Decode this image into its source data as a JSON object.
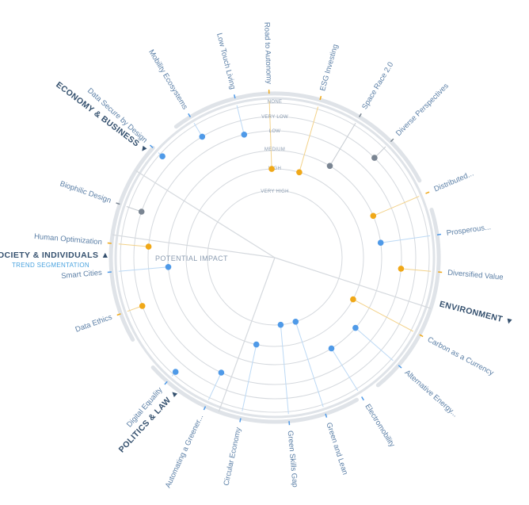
{
  "chart_data": {
    "type": "radar-scatter",
    "center_label": "POTENTIAL IMPACT",
    "rings": [
      "NONE",
      "VERY LOW",
      "LOW",
      "MEDIUM",
      "HIGH",
      "VERY HIGH"
    ],
    "colors": {
      "blue": "#4f9ae8",
      "orange": "#f0a818",
      "gray": "#7a8592",
      "grid": "#d5d9de",
      "frame": "#dfe3e8",
      "blue_line": "#bcd9f5",
      "orange_line": "#f3d28a",
      "gray_line": "#c6cbd1",
      "sector_text": "#34506e",
      "trend_text": "#5b7fa6",
      "sub_text": "#4aa3df"
    },
    "sectors": [
      {
        "name": "ECONOMY & BUSINESS",
        "sub": ""
      },
      {
        "name": "SOCIETY & INDIVIDUALS",
        "sub": "TREND SEGMENTATION"
      },
      {
        "name": "ENVIRONMENT",
        "sub": ""
      },
      {
        "name": "POLITICS & LAW",
        "sub": ""
      }
    ],
    "trends": [
      {
        "label": "Road to Autonomy",
        "angle": 92,
        "level": "HIGH",
        "color": "orange"
      },
      {
        "label": "ESG Investing",
        "angle": 74,
        "level": "HIGH",
        "color": "orange"
      },
      {
        "label": "Space Race 2.0",
        "angle": 59,
        "level": "MEDIUM",
        "color": "gray"
      },
      {
        "label": "Diverse Perspectives",
        "angle": 45,
        "level": "VERY LOW",
        "color": "gray"
      },
      {
        "label": "Distributed...",
        "angle": 23,
        "level": "MEDIUM",
        "color": "orange"
      },
      {
        "label": "Prosperous...",
        "angle": 8,
        "level": "MEDIUM",
        "color": "blue"
      },
      {
        "label": "Diversified Value",
        "angle": -5,
        "level": "LOW",
        "color": "orange"
      },
      {
        "label": "Carbon as a Currency",
        "angle": -28,
        "level": "HIGH",
        "color": "orange"
      },
      {
        "label": "Alternative Energy...",
        "angle": -41,
        "level": "MEDIUM",
        "color": "blue"
      },
      {
        "label": "Electromobility",
        "angle": -58,
        "level": "MEDIUM",
        "color": "blue"
      },
      {
        "label": "Green and Lean",
        "angle": -72,
        "level": "VERY HIGH",
        "color": "blue"
      },
      {
        "label": "Green Skills Gap",
        "angle": -85,
        "level": "VERY HIGH",
        "color": "blue"
      },
      {
        "label": "Circular Economy",
        "angle": -102,
        "level": "HIGH",
        "color": "blue"
      },
      {
        "label": "Automating a Greener...",
        "angle": -115,
        "level": "LOW",
        "color": "blue"
      },
      {
        "label": "Digital Equality",
        "angle": -131,
        "level": "NONE",
        "color": "blue"
      },
      {
        "label": "Data Ethics",
        "angle": -160,
        "level": "VERY LOW",
        "color": "orange"
      },
      {
        "label": "Smart Cities",
        "angle": -175,
        "level": "MEDIUM",
        "color": "blue"
      },
      {
        "label": "Human Optimization",
        "angle": 175,
        "level": "LOW",
        "color": "orange"
      },
      {
        "label": "Biophilic Design",
        "angle": 161,
        "level": "VERY LOW",
        "color": "gray"
      },
      {
        "label": "Data Secure by Design",
        "angle": 138,
        "level": "NONE",
        "color": "blue"
      },
      {
        "label": "Mobility Ecosystems",
        "angle": 121,
        "level": "VERY LOW",
        "color": "blue"
      },
      {
        "label": "Low Touch Living",
        "angle": 104,
        "level": "LOW",
        "color": "blue"
      }
    ]
  }
}
